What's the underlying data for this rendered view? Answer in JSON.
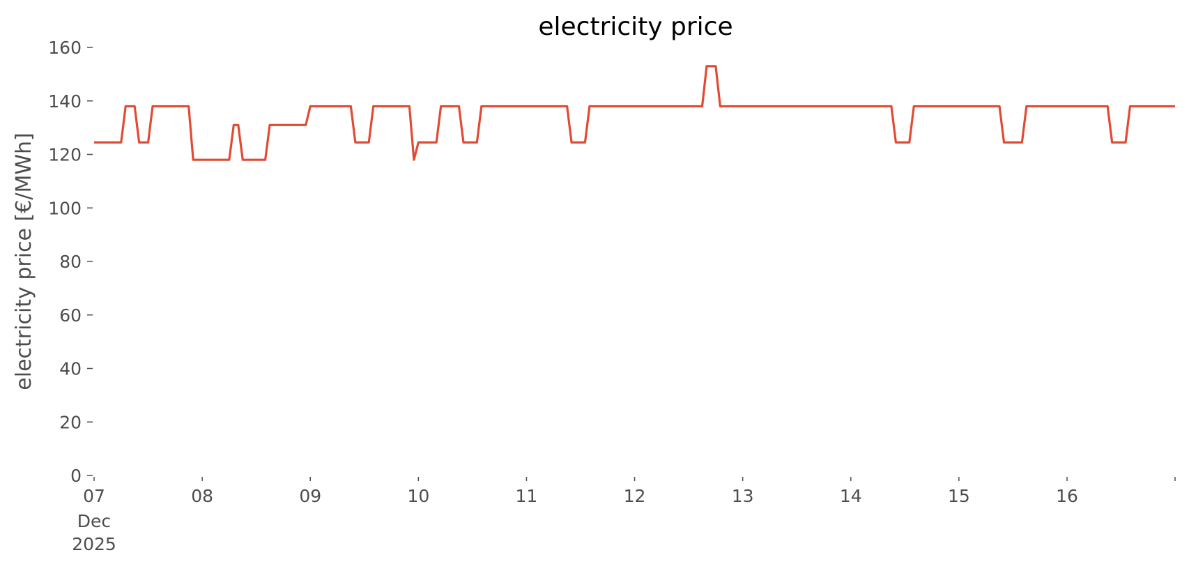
{
  "chart_data": {
    "type": "line",
    "title": "electricity price",
    "xlabel": "",
    "ylabel": "electricity price [€/MWh]",
    "ylim": [
      0,
      160
    ],
    "xlim": [
      "2025-12-07 00:00",
      "2025-12-16 23:59"
    ],
    "yticks": [
      0,
      20,
      40,
      60,
      80,
      100,
      120,
      140,
      160
    ],
    "xticks": [
      {
        "date": "2025-12-07",
        "label": "07",
        "sublabels": [
          "Dec",
          "2025"
        ]
      },
      {
        "date": "2025-12-08",
        "label": "08"
      },
      {
        "date": "2025-12-09",
        "label": "09"
      },
      {
        "date": "2025-12-10",
        "label": "10"
      },
      {
        "date": "2025-12-11",
        "label": "11"
      },
      {
        "date": "2025-12-12",
        "label": "12"
      },
      {
        "date": "2025-12-13",
        "label": "13"
      },
      {
        "date": "2025-12-14",
        "label": "14"
      },
      {
        "date": "2025-12-15",
        "label": "15"
      },
      {
        "date": "2025-12-16",
        "label": "16"
      },
      {
        "date": "2025-12-17",
        "label": ""
      }
    ],
    "grid": false,
    "legend": "none",
    "series": [
      {
        "color": "#e24a33",
        "points": [
          [
            "2025-12-07 00:00",
            124.5
          ],
          [
            "2025-12-07 06:00",
            124.5
          ],
          [
            "2025-12-07 07:00",
            138
          ],
          [
            "2025-12-07 09:00",
            138
          ],
          [
            "2025-12-07 10:00",
            124.5
          ],
          [
            "2025-12-07 12:00",
            124.5
          ],
          [
            "2025-12-07 13:00",
            138
          ],
          [
            "2025-12-07 21:00",
            138
          ],
          [
            "2025-12-07 22:00",
            118
          ],
          [
            "2025-12-08 06:00",
            118
          ],
          [
            "2025-12-08 07:00",
            131
          ],
          [
            "2025-12-08 08:00",
            131
          ],
          [
            "2025-12-08 09:00",
            118
          ],
          [
            "2025-12-08 14:00",
            118
          ],
          [
            "2025-12-08 15:00",
            131
          ],
          [
            "2025-12-08 23:00",
            131
          ],
          [
            "2025-12-09 00:00",
            138
          ],
          [
            "2025-12-09 09:00",
            138
          ],
          [
            "2025-12-09 10:00",
            124.5
          ],
          [
            "2025-12-09 13:00",
            124.5
          ],
          [
            "2025-12-09 14:00",
            138
          ],
          [
            "2025-12-09 22:00",
            138
          ],
          [
            "2025-12-09 23:00",
            118
          ],
          [
            "2025-12-10 00:00",
            124.5
          ],
          [
            "2025-12-10 04:00",
            124.5
          ],
          [
            "2025-12-10 05:00",
            138
          ],
          [
            "2025-12-10 09:00",
            138
          ],
          [
            "2025-12-10 10:00",
            124.5
          ],
          [
            "2025-12-10 13:00",
            124.5
          ],
          [
            "2025-12-10 14:00",
            138
          ],
          [
            "2025-12-11 09:00",
            138
          ],
          [
            "2025-12-11 10:00",
            124.5
          ],
          [
            "2025-12-11 13:00",
            124.5
          ],
          [
            "2025-12-11 14:00",
            138
          ],
          [
            "2025-12-12 15:00",
            138
          ],
          [
            "2025-12-12 16:00",
            153
          ],
          [
            "2025-12-12 18:00",
            153
          ],
          [
            "2025-12-12 19:00",
            138
          ],
          [
            "2025-12-14 09:00",
            138
          ],
          [
            "2025-12-14 10:00",
            124.5
          ],
          [
            "2025-12-14 13:00",
            124.5
          ],
          [
            "2025-12-14 14:00",
            138
          ],
          [
            "2025-12-15 09:00",
            138
          ],
          [
            "2025-12-15 10:00",
            124.5
          ],
          [
            "2025-12-15 14:00",
            124.5
          ],
          [
            "2025-12-15 15:00",
            138
          ],
          [
            "2025-12-16 09:00",
            138
          ],
          [
            "2025-12-16 10:00",
            124.5
          ],
          [
            "2025-12-16 13:00",
            124.5
          ],
          [
            "2025-12-16 14:00",
            138
          ],
          [
            "2025-12-16 23:59",
            138
          ]
        ]
      }
    ]
  }
}
